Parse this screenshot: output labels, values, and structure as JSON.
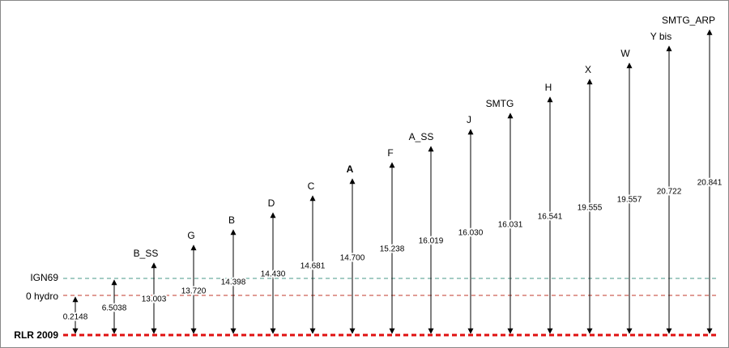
{
  "levels": [
    {
      "label": "IGN69"
    },
    {
      "label": "0 hydro"
    },
    {
      "label": "RLR 2009"
    }
  ],
  "markers": [
    {
      "value": "0.2148"
    },
    {
      "value": "6.5038"
    },
    {
      "label": "B_SS",
      "value": "13.003"
    },
    {
      "label": "G",
      "value": "13.720"
    },
    {
      "label": "B",
      "value": "14.398"
    },
    {
      "label": "D",
      "value": "14.430"
    },
    {
      "label": "C",
      "value": "14.681"
    },
    {
      "label": "A",
      "value": "14.700"
    },
    {
      "label": "F",
      "value": "15.238"
    },
    {
      "label": "A_SS",
      "value": "16.019"
    },
    {
      "label": "J",
      "value": "16.030"
    },
    {
      "label": "SMTG",
      "value": "16.031"
    },
    {
      "label": "H",
      "value": "16.541"
    },
    {
      "label": "X",
      "value": "19.555"
    },
    {
      "label": "W",
      "value": "19.557"
    },
    {
      "label": "Y bis",
      "value": "20.722"
    },
    {
      "label": "SMTG_ARP",
      "value": "20.841"
    }
  ]
}
